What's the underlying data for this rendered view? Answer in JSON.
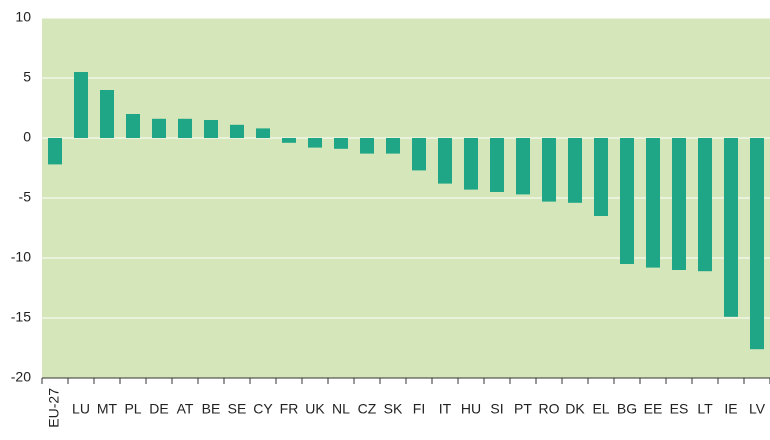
{
  "chart_data": {
    "type": "bar",
    "categories": [
      "EU-27",
      "LU",
      "MT",
      "PL",
      "DE",
      "AT",
      "BE",
      "SE",
      "CY",
      "FR",
      "UK",
      "NL",
      "CZ",
      "SK",
      "FI",
      "IT",
      "HU",
      "SI",
      "PT",
      "RO",
      "DK",
      "EL",
      "BG",
      "EE",
      "ES",
      "LT",
      "IE",
      "LV"
    ],
    "values": [
      -2.2,
      5.5,
      4.0,
      2.0,
      1.6,
      1.6,
      1.5,
      1.1,
      0.8,
      -0.4,
      -0.8,
      -0.9,
      -1.3,
      -1.3,
      -2.7,
      -3.8,
      -4.3,
      -4.5,
      -4.7,
      -5.3,
      -5.4,
      -6.5,
      -10.5,
      -10.8,
      -11.0,
      -11.1,
      -14.9,
      -17.6
    ],
    "color": "#1ea686",
    "background": "#d4e6ba",
    "ylim": [
      -20,
      10
    ],
    "yticks": [
      -20,
      -15,
      -10,
      -5,
      0,
      5,
      10
    ],
    "grid": true
  }
}
